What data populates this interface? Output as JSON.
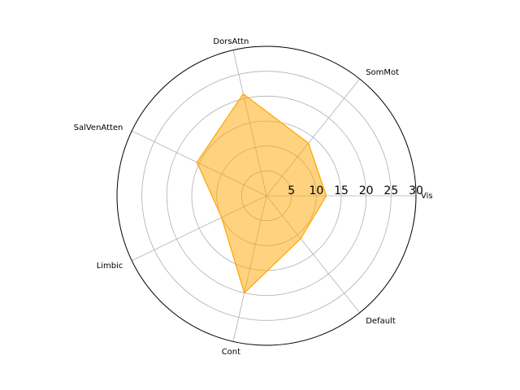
{
  "chart_data": {
    "type": "radar",
    "title": "",
    "categories": [
      "Vis",
      "SomMot",
      "DorsAttn",
      "SalVenAtten",
      "Limbic",
      "Cont",
      "Default"
    ],
    "series": [
      {
        "values": [
          12,
          13.5,
          21,
          15.5,
          10,
          20,
          11
        ],
        "color": "#ffa500",
        "fill_opacity": 0.5
      }
    ],
    "rlim": [
      0,
      30
    ],
    "rticks": [
      5,
      10,
      15,
      20,
      25,
      30
    ],
    "grid": true,
    "tick_angle_deg": 0
  }
}
